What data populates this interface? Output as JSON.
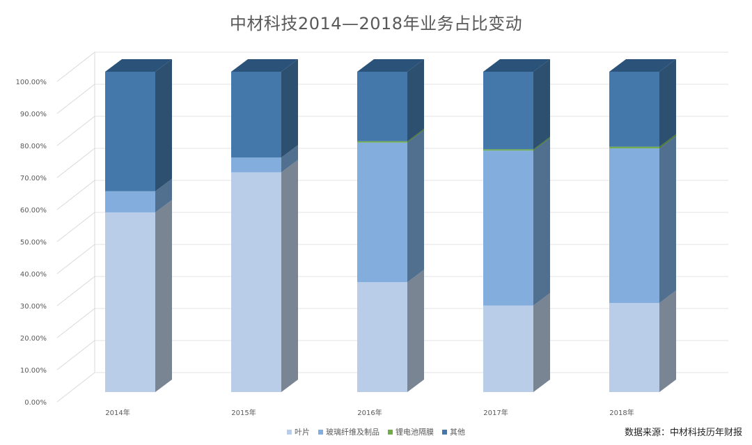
{
  "header": {
    "title": "中材科技2014—2018年业务占比变动"
  },
  "footer": {
    "source": "数据来源：中材科技历年财报"
  },
  "chart_data": {
    "type": "bar",
    "stacked": true,
    "three_d": true,
    "title": "中材科技2014—2018年业务占比变动",
    "xlabel": "",
    "ylabel": "",
    "ylim": [
      0,
      1
    ],
    "y_ticks": [
      "0.00%",
      "10.00%",
      "20.00%",
      "30.00%",
      "40.00%",
      "50.00%",
      "60.00%",
      "70.00%",
      "80.00%",
      "90.00%",
      "100.00%"
    ],
    "grid": true,
    "legend_position": "bottom",
    "categories": [
      "2014年",
      "2015年",
      "2016年",
      "2017年",
      "2018年"
    ],
    "series": [
      {
        "name": "叶片",
        "values": [
          0.561,
          0.686,
          0.343,
          0.27,
          0.278
        ],
        "color": "#b9cde9",
        "side_color": "#7a8594"
      },
      {
        "name": "玻璃纤维及制品",
        "values": [
          0.066,
          0.046,
          0.436,
          0.484,
          0.483
        ],
        "color": "#82addd",
        "side_color": "#517090"
      },
      {
        "name": "锂电池隔膜",
        "values": [
          0.0,
          0.0,
          0.004,
          0.004,
          0.005
        ],
        "color": "#70ad47",
        "side_color": "#4a7a2f"
      },
      {
        "name": "其他",
        "values": [
          0.373,
          0.268,
          0.217,
          0.242,
          0.234
        ],
        "color": "#4478aa",
        "side_color": "#2d4f70"
      }
    ]
  }
}
